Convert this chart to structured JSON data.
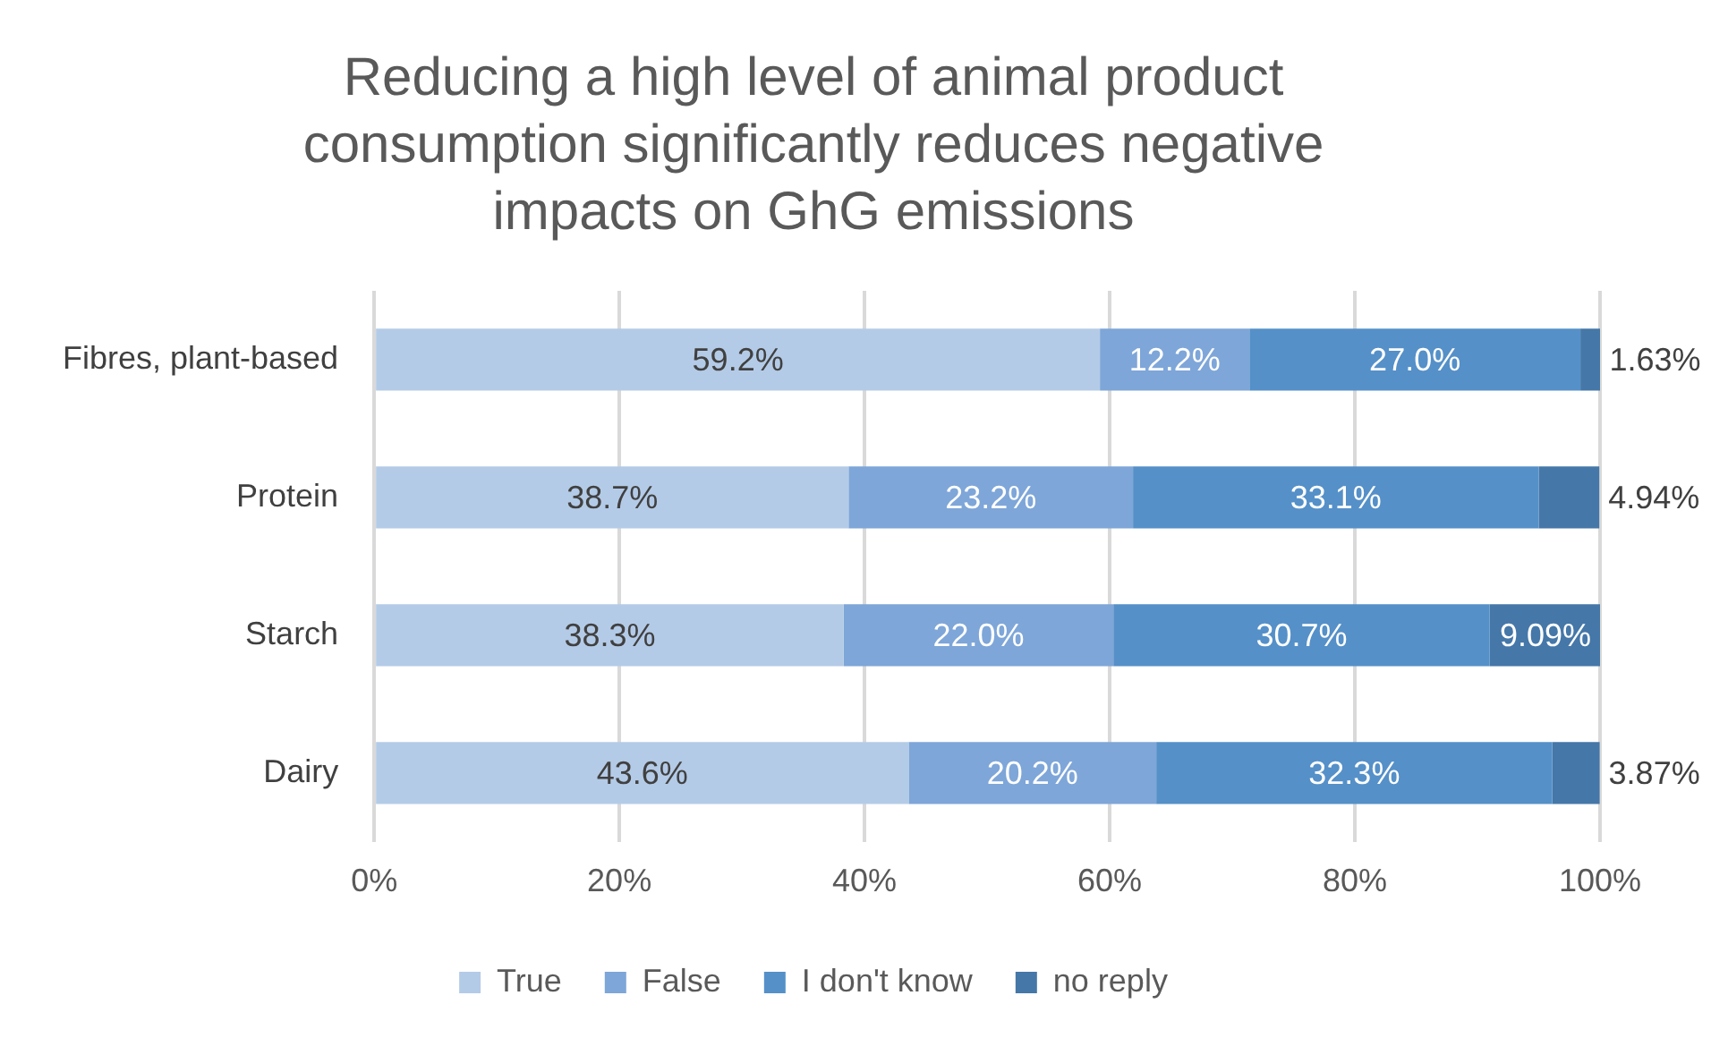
{
  "chart_data": {
    "type": "bar",
    "title": "Reducing a high level of animal product consumption significantly reduces negative impacts on GhG emissions",
    "orientation": "horizontal",
    "stacked": true,
    "categories": [
      "Fibres, plant-based",
      "Protein",
      "Starch",
      "Dairy"
    ],
    "series": [
      {
        "name": "True",
        "color": "#b4cbe7",
        "values": [
          59.2,
          38.7,
          38.3,
          43.6
        ],
        "value_labels": [
          "59.2%",
          "38.7%",
          "38.3%",
          "43.6%"
        ]
      },
      {
        "name": "False",
        "color": "#7ea6d8",
        "values": [
          12.2,
          23.2,
          22.0,
          20.2
        ],
        "value_labels": [
          "12.2%",
          "23.2%",
          "22.0%",
          "20.2%"
        ]
      },
      {
        "name": "I don't know",
        "color": "#5590c8",
        "values": [
          27.0,
          33.1,
          30.7,
          32.3
        ],
        "value_labels": [
          "27.0%",
          "33.1%",
          "30.7%",
          "32.3%"
        ]
      },
      {
        "name": "no reply",
        "color": "#4577a8",
        "values": [
          1.63,
          4.94,
          9.09,
          3.87
        ],
        "value_labels": [
          "1.63%",
          "4.94%",
          "9.09%",
          "3.87%"
        ]
      }
    ],
    "xlim": [
      0,
      100
    ],
    "xticks": [
      {
        "value": 0,
        "label": "0%"
      },
      {
        "value": 20,
        "label": "20%"
      },
      {
        "value": 40,
        "label": "40%"
      },
      {
        "value": 60,
        "label": "60%"
      },
      {
        "value": 80,
        "label": "80%"
      },
      {
        "value": 100,
        "label": "100%"
      }
    ],
    "grid": "x",
    "legend": "bottom"
  }
}
